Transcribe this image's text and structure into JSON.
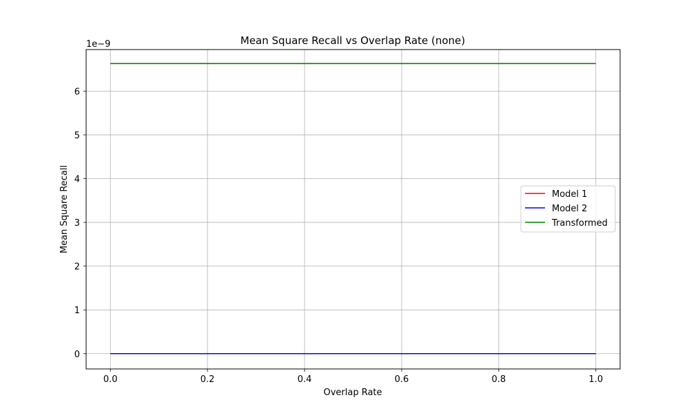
{
  "chart_data": {
    "type": "line",
    "title": "Mean Square Recall vs Overlap Rate (none)",
    "xlabel": "Overlap Rate",
    "ylabel": "Mean Square Recall",
    "offset_text": "1e−9",
    "xlim": [
      -0.05,
      1.05
    ],
    "ylim": [
      -0.35,
      6.95
    ],
    "x_ticks": [
      0.0,
      0.2,
      0.4,
      0.6,
      0.8,
      1.0
    ],
    "x_tick_labels": [
      "0.0",
      "0.2",
      "0.4",
      "0.6",
      "0.8",
      "1.0"
    ],
    "y_ticks": [
      0,
      1,
      2,
      3,
      4,
      5,
      6
    ],
    "y_tick_labels": [
      "0",
      "1",
      "2",
      "3",
      "4",
      "5",
      "6"
    ],
    "grid": true,
    "legend_position": "center-right",
    "series": [
      {
        "name": "Model 1",
        "color": "#ff0000",
        "x": [
          0.0,
          1.0
        ],
        "y": [
          0,
          0
        ]
      },
      {
        "name": "Model 2",
        "color": "#0000ff",
        "x": [
          0.0,
          1.0
        ],
        "y": [
          0,
          0
        ]
      },
      {
        "name": "Transformed",
        "color": "#008000",
        "x": [
          0.0,
          1.0
        ],
        "y": [
          6.63,
          6.63
        ]
      }
    ]
  }
}
